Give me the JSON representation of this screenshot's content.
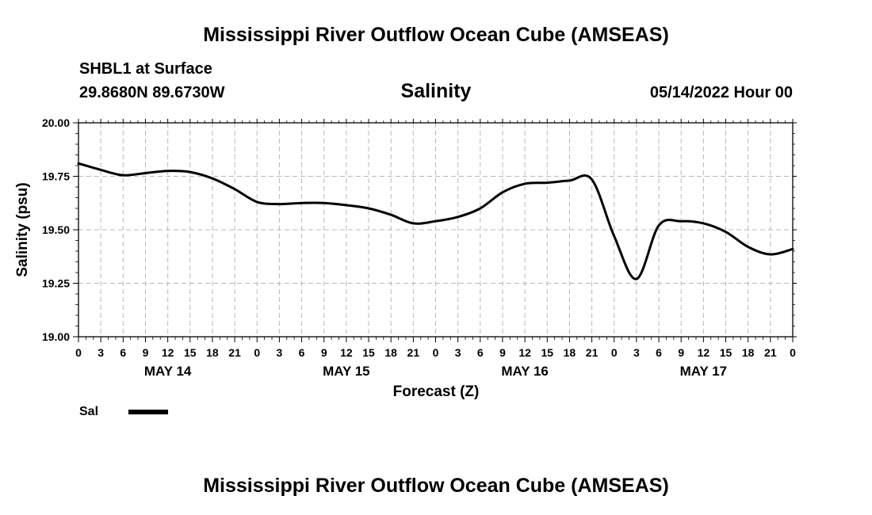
{
  "header": {
    "title": "Mississippi River Outflow Ocean Cube (AMSEAS)",
    "station": "SHBL1 at Surface",
    "coords": "29.8680N  89.6730W",
    "chart_title": "Salinity",
    "datetime": "05/14/2022 Hour 00"
  },
  "footer": {
    "title": "Mississippi River Outflow Ocean Cube (AMSEAS)"
  },
  "chart_data": {
    "type": "line",
    "title": "Salinity",
    "xlabel": "Forecast (Z)",
    "ylabel": "Salinity (psu)",
    "ylim": [
      19.0,
      20.0
    ],
    "xlim_hours": [
      0,
      96
    ],
    "y_ticks": [
      "19.00",
      "19.25",
      "19.50",
      "19.75",
      "20.00"
    ],
    "hour_ticks": [
      "0",
      "3",
      "6",
      "9",
      "12",
      "15",
      "18",
      "21",
      "0",
      "3",
      "6",
      "9",
      "12",
      "15",
      "18",
      "21",
      "0",
      "3",
      "6",
      "9",
      "12",
      "15",
      "18",
      "21",
      "0",
      "3",
      "6",
      "9",
      "12",
      "15",
      "18",
      "21",
      "0"
    ],
    "day_labels": [
      {
        "label": "MAY 14",
        "hour": 12
      },
      {
        "label": "MAY 15",
        "hour": 36
      },
      {
        "label": "MAY 16",
        "hour": 60
      },
      {
        "label": "MAY 17",
        "hour": 84
      }
    ],
    "grid": true,
    "legend": "bottom-left",
    "series": [
      {
        "name": "Sal",
        "x": [
          0,
          3,
          6,
          9,
          12,
          15,
          18,
          21,
          24,
          27,
          30,
          33,
          36,
          39,
          42,
          45,
          48,
          51,
          54,
          57,
          60,
          63,
          66,
          69,
          72,
          75,
          78,
          81,
          84,
          87,
          90,
          93,
          96
        ],
        "values": [
          19.81,
          19.78,
          19.755,
          19.765,
          19.775,
          19.77,
          19.74,
          19.69,
          19.63,
          19.62,
          19.625,
          19.625,
          19.615,
          19.6,
          19.57,
          19.53,
          19.54,
          19.56,
          19.6,
          19.675,
          19.715,
          19.72,
          19.73,
          19.735,
          19.47,
          19.27,
          19.52,
          19.54,
          19.53,
          19.49,
          19.42,
          19.385,
          19.41
        ]
      }
    ]
  }
}
